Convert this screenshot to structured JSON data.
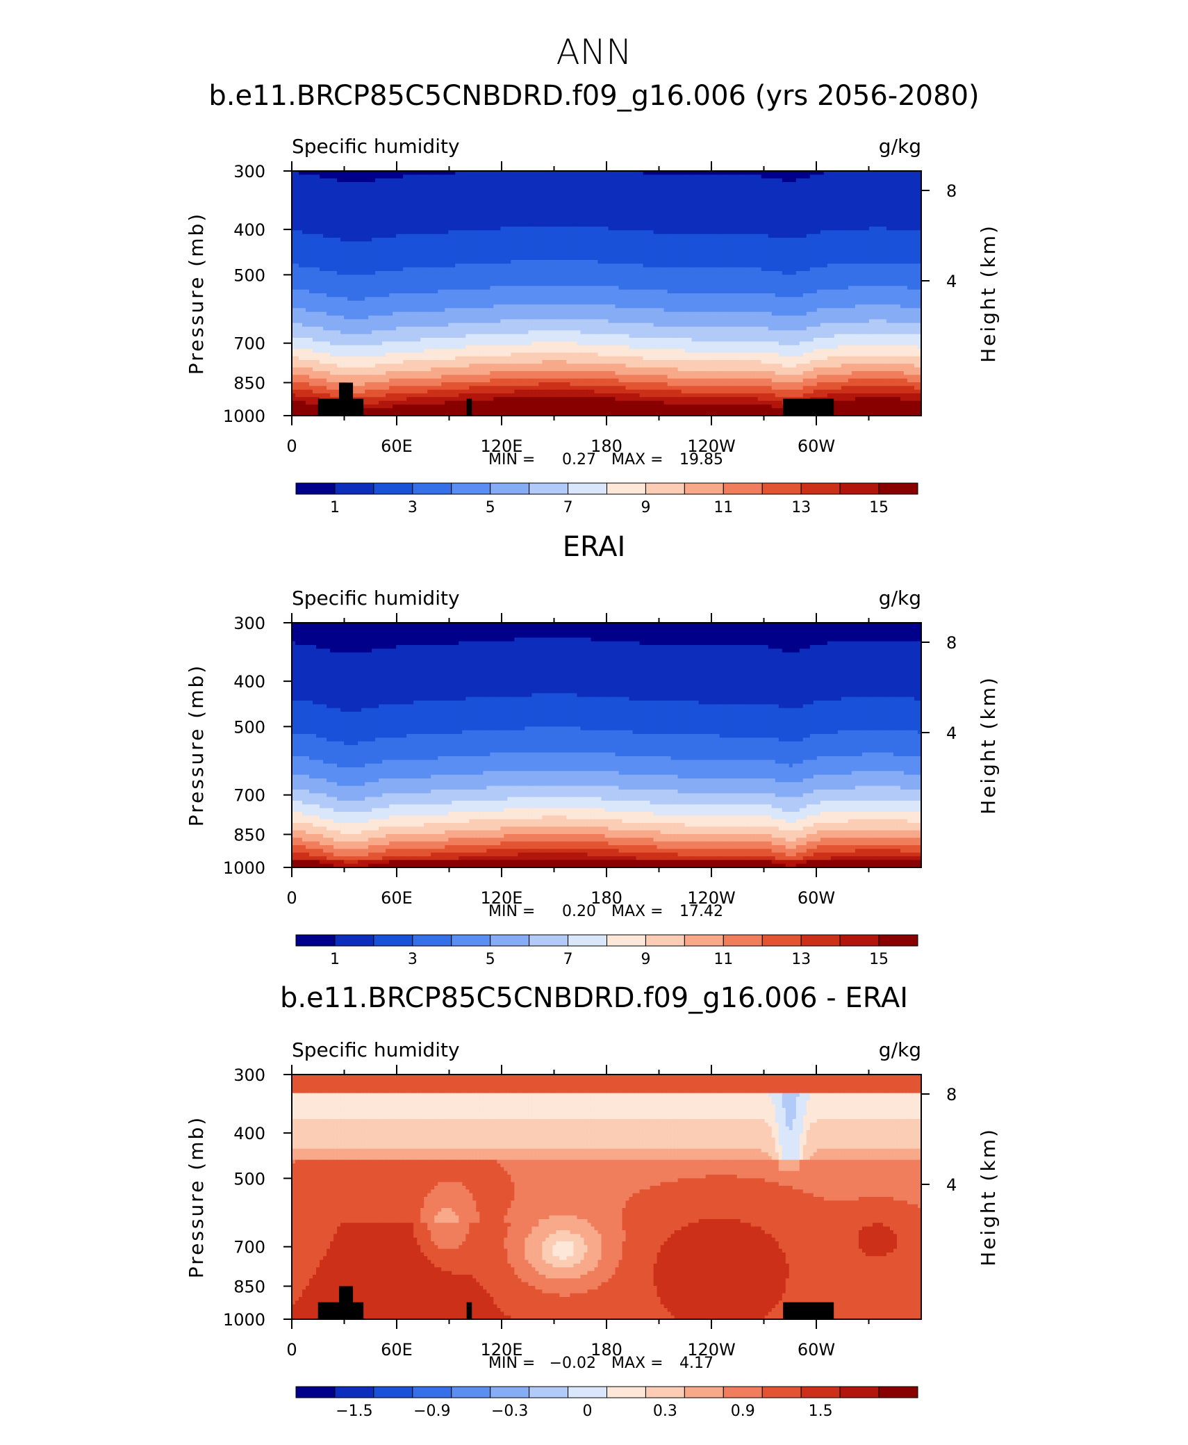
{
  "figure": {
    "title": "ANN"
  },
  "chart_data": [
    {
      "type": "contour",
      "title": "b.e11.BRCP85C5CNBDRD.f09_g16.006 (yrs 2056-2080)",
      "left_label": "Specific humidity",
      "right_label": "g/kg",
      "ylabel": "Pressure (mb)",
      "ylabel_right": "Height (km)",
      "xticks": [
        "0",
        "60E",
        "120E",
        "180",
        "120W",
        "60W"
      ],
      "yticks": [
        "300",
        "400",
        "500",
        "700",
        "850",
        "1000"
      ],
      "yticks_right": [
        "8",
        "4"
      ],
      "stats": {
        "min_label": "MIN =",
        "min": "0.27",
        "max_label": "MAX =",
        "max": "19.85"
      },
      "colorbar_labels": [
        "1",
        "3",
        "5",
        "7",
        "9",
        "11",
        "13",
        "15"
      ],
      "colorbar_levels": [
        1,
        2,
        3,
        4,
        5,
        6,
        7,
        8,
        9,
        10,
        11,
        12,
        13,
        14,
        15
      ],
      "field": "model"
    },
    {
      "type": "contour",
      "title": "ERAI",
      "left_label": "Specific humidity",
      "right_label": "g/kg",
      "ylabel": "Pressure (mb)",
      "ylabel_right": "Height (km)",
      "xticks": [
        "0",
        "60E",
        "120E",
        "180",
        "120W",
        "60W"
      ],
      "yticks": [
        "300",
        "400",
        "500",
        "700",
        "850",
        "1000"
      ],
      "yticks_right": [
        "8",
        "4"
      ],
      "stats": {
        "min_label": "MIN =",
        "min": "0.20",
        "max_label": "MAX =",
        "max": "17.42"
      },
      "colorbar_labels": [
        "1",
        "3",
        "5",
        "7",
        "9",
        "11",
        "13",
        "15"
      ],
      "colorbar_levels": [
        1,
        2,
        3,
        4,
        5,
        6,
        7,
        8,
        9,
        10,
        11,
        12,
        13,
        14,
        15
      ],
      "field": "obs"
    },
    {
      "type": "contour",
      "title": "b.e11.BRCP85C5CNBDRD.f09_g16.006 - ERAI",
      "left_label": "Specific humidity",
      "right_label": "g/kg",
      "ylabel": "Pressure (mb)",
      "ylabel_right": "Height (km)",
      "xticks": [
        "0",
        "60E",
        "120E",
        "180",
        "120W",
        "60W"
      ],
      "yticks": [
        "300",
        "400",
        "500",
        "700",
        "850",
        "1000"
      ],
      "yticks_right": [
        "8",
        "4"
      ],
      "stats": {
        "min_label": "MIN =",
        "min": "−0.02",
        "max_label": "MAX =",
        "max": "4.17"
      },
      "colorbar_labels": [
        "−1.5",
        "−0.9",
        "−0.3",
        "0",
        "0.3",
        "0.9",
        "1.5"
      ],
      "colorbar_levels": [
        -1.8,
        -1.5,
        -1.2,
        -0.9,
        -0.6,
        -0.3,
        0,
        0.15,
        0.3,
        0.6,
        0.9,
        1.2,
        1.5,
        1.8
      ],
      "field": "diff"
    }
  ],
  "colors": {
    "palette": [
      "#00008b",
      "#0d2ebd",
      "#1a51d9",
      "#3670e8",
      "#5a8ef2",
      "#86acf5",
      "#b1caf7",
      "#dae6fa",
      "#fce7d8",
      "#fbcdb4",
      "#f7a98a",
      "#f07e5c",
      "#e35532",
      "#cd3018",
      "#b2150b",
      "#880000"
    ],
    "land_mask": "#000000"
  }
}
